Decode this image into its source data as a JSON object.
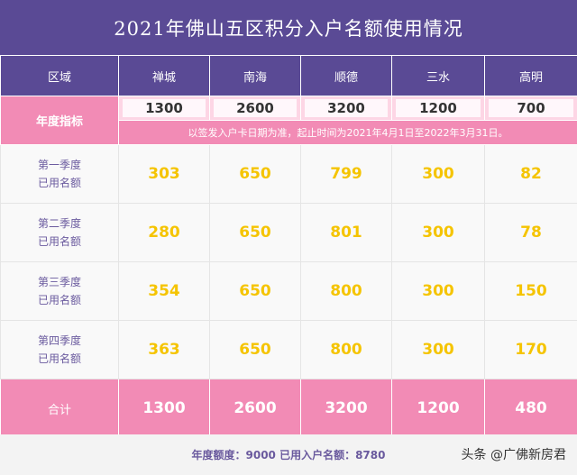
{
  "title": "2021年佛山五区积分入户名额使用情况",
  "header": {
    "region_label": "区域",
    "districts": [
      "禅城",
      "南海",
      "顺德",
      "三水",
      "高明"
    ]
  },
  "annual_target": {
    "label": "年度指标",
    "values": [
      "1300",
      "2600",
      "3200",
      "1200",
      "700"
    ],
    "note": "以签发入户卡日期为准，起止时间为2021年4月1日至2022年3月31日。"
  },
  "quarters": [
    {
      "label_line1": "第一季度",
      "label_line2": "已用名额",
      "values": [
        "303",
        "650",
        "799",
        "300",
        "82"
      ]
    },
    {
      "label_line1": "第二季度",
      "label_line2": "已用名额",
      "values": [
        "280",
        "650",
        "801",
        "300",
        "78"
      ]
    },
    {
      "label_line1": "第三季度",
      "label_line2": "已用名额",
      "values": [
        "354",
        "650",
        "800",
        "300",
        "150"
      ]
    },
    {
      "label_line1": "第四季度",
      "label_line2": "已用名额",
      "values": [
        "363",
        "650",
        "800",
        "300",
        "170"
      ]
    }
  ],
  "total": {
    "label": "合计",
    "values": [
      "1300",
      "2600",
      "3200",
      "1200",
      "480"
    ]
  },
  "footer": {
    "summary": "年度额度：9000  已用入户名额：8780",
    "source": "头条 @广佛新房君"
  },
  "colors": {
    "header_purple": "#5a4a95",
    "row_pink": "#f28bb5",
    "value_yellow": "#f5c400"
  }
}
